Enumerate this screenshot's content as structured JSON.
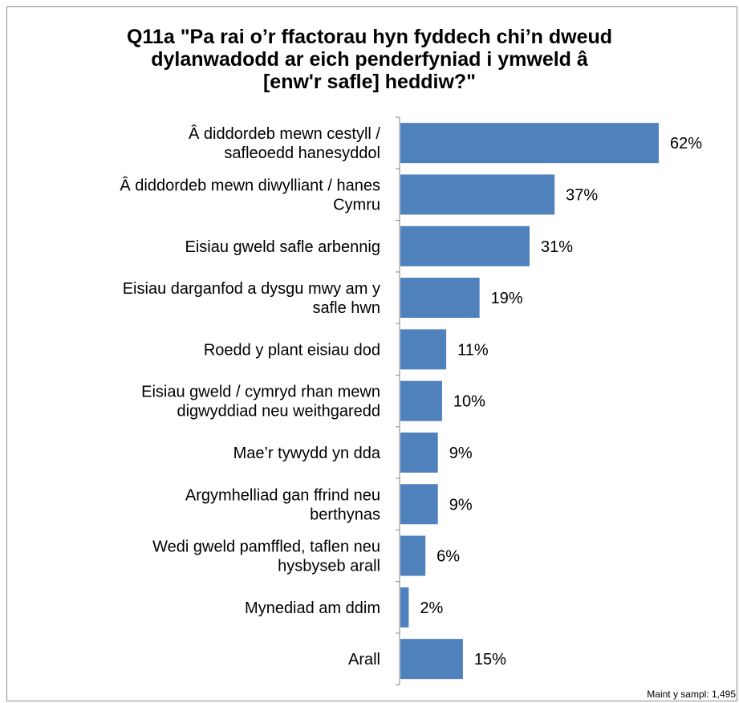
{
  "chart_data": {
    "type": "bar",
    "orientation": "horizontal",
    "title": "Q11a \"Pa rai o’r ffactorau hyn fyddech chi’n dweud dylanwadodd ar eich penderfyniad i ymweld â [enw'r safle] heddiw?\"",
    "title_lines": [
      "Q11a \"Pa rai o’r ffactorau hyn fyddech chi’n dweud",
      "dylanwadodd ar eich penderfyniad i ymweld â",
      "[enw'r safle] heddiw?\""
    ],
    "categories": [
      [
        "Â diddordeb mewn cestyll /",
        "safleoedd hanesyddol"
      ],
      [
        "Â diddordeb mewn diwylliant / hanes",
        "Cymru"
      ],
      [
        "Eisiau gweld safle arbennig"
      ],
      [
        "Eisiau darganfod a dysgu mwy am y",
        "safle hwn"
      ],
      [
        "Roedd y plant eisiau dod"
      ],
      [
        "Eisiau gweld / cymryd rhan mewn",
        "digwyddiad neu weithgaredd"
      ],
      [
        "Mae’r tywydd yn dda"
      ],
      [
        "Argymhelliad gan ffrind neu",
        "berthynas"
      ],
      [
        "Wedi gweld pamffled, taflen neu",
        "hysbyseb arall"
      ],
      [
        "Mynediad am ddim"
      ],
      [
        "Arall"
      ]
    ],
    "values": [
      62,
      37,
      31,
      19,
      11,
      10,
      9,
      9,
      6,
      2,
      15
    ],
    "value_labels": [
      "62%",
      "37%",
      "31%",
      "19%",
      "11%",
      "10%",
      "9%",
      "9%",
      "6%",
      "2%",
      "15%"
    ],
    "xlim": [
      0,
      70
    ],
    "bar_color": "#4f81bd",
    "grid": false,
    "legend": "none"
  },
  "sample_note": "Maint y sampl: 1,495"
}
